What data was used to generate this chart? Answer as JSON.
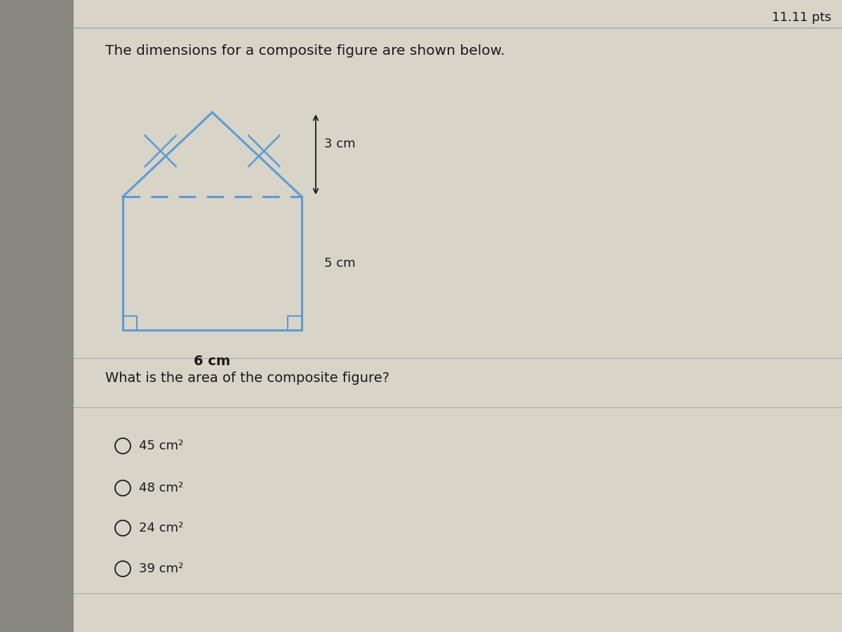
{
  "bg_color": "#c8c4b8",
  "left_strip_color": "#5a5a5a",
  "panel_color": "#d4d0c4",
  "title_text": "The dimensions for a composite figure are shown below.",
  "question_text": "What is the area of the composite figure?",
  "pts_text": "11.11 pts",
  "choices": [
    "45 cm²",
    "48 cm²",
    "24 cm²",
    "39 cm²"
  ],
  "dim_3cm": "3 cm",
  "dim_5cm": "5 cm",
  "dim_6cm": "6 cm",
  "house_color": "#5b9bd5",
  "font_color": "#1a1a1a",
  "title_fontsize": 14.5,
  "question_fontsize": 14,
  "choice_fontsize": 13,
  "pts_fontsize": 13,
  "dim_fontsize": 13
}
